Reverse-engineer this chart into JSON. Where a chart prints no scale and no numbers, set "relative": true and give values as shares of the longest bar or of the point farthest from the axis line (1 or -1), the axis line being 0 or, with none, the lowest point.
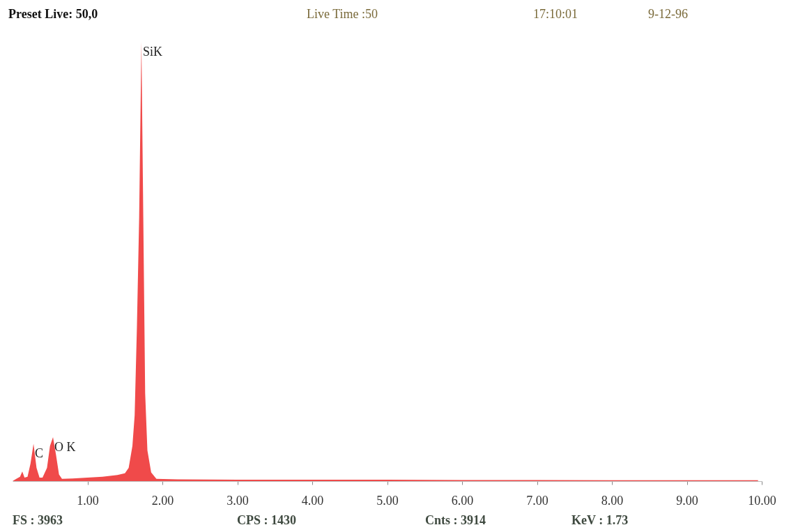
{
  "chart_data": {
    "type": "area",
    "relative": true,
    "color": "#f04a4a",
    "x": [
      0,
      0.05,
      0.1,
      0.13,
      0.16,
      0.2,
      0.24,
      0.28,
      0.32,
      0.36,
      0.4,
      0.46,
      0.5,
      0.54,
      0.58,
      0.62,
      0.66,
      0.8,
      1.0,
      1.2,
      1.4,
      1.5,
      1.55,
      1.6,
      1.63,
      1.66,
      1.69,
      1.72,
      1.745,
      1.77,
      1.8,
      1.85,
      1.92,
      2.2,
      3,
      4,
      5,
      6,
      7,
      8,
      9,
      9.95
    ],
    "values": [
      0,
      0.005,
      0.01,
      0.022,
      0.008,
      0.01,
      0.04,
      0.085,
      0.03,
      0.008,
      0.008,
      0.03,
      0.08,
      0.1,
      0.06,
      0.015,
      0.005,
      0.006,
      0.008,
      0.01,
      0.014,
      0.018,
      0.03,
      0.08,
      0.15,
      0.35,
      0.6,
      1.0,
      0.6,
      0.2,
      0.07,
      0.02,
      0.005,
      0.004,
      0.003,
      0.003,
      0.003,
      0.0025,
      0.0025,
      0.002,
      0.002,
      0.002
    ],
    "xlim": [
      0,
      10
    ],
    "xticks": [
      {
        "value": 1,
        "label": "1.00"
      },
      {
        "value": 2,
        "label": "2.00"
      },
      {
        "value": 3,
        "label": "3.00"
      },
      {
        "value": 4,
        "label": "4.00"
      },
      {
        "value": 5,
        "label": "5.00"
      },
      {
        "value": 6,
        "label": "6.00"
      },
      {
        "value": 7,
        "label": "7.00"
      },
      {
        "value": 8,
        "label": "8.00"
      },
      {
        "value": 9,
        "label": "9.00"
      },
      {
        "value": 10,
        "label": "10.00"
      }
    ],
    "grid": false,
    "annotations": [
      "Preset Live: 50,0",
      "Live Time :50",
      "17:10:01",
      "9-12-96",
      "FS : 3963",
      "CPS : 1430",
      "Cnts : 3914",
      "KeV : 1.73",
      {
        "text": "C",
        "x": 0.28,
        "y": 0.085
      },
      {
        "text": "O K",
        "x": 0.54,
        "y": 0.1
      },
      {
        "text": "SiK",
        "x": 1.72,
        "y": 1.0
      }
    ]
  }
}
